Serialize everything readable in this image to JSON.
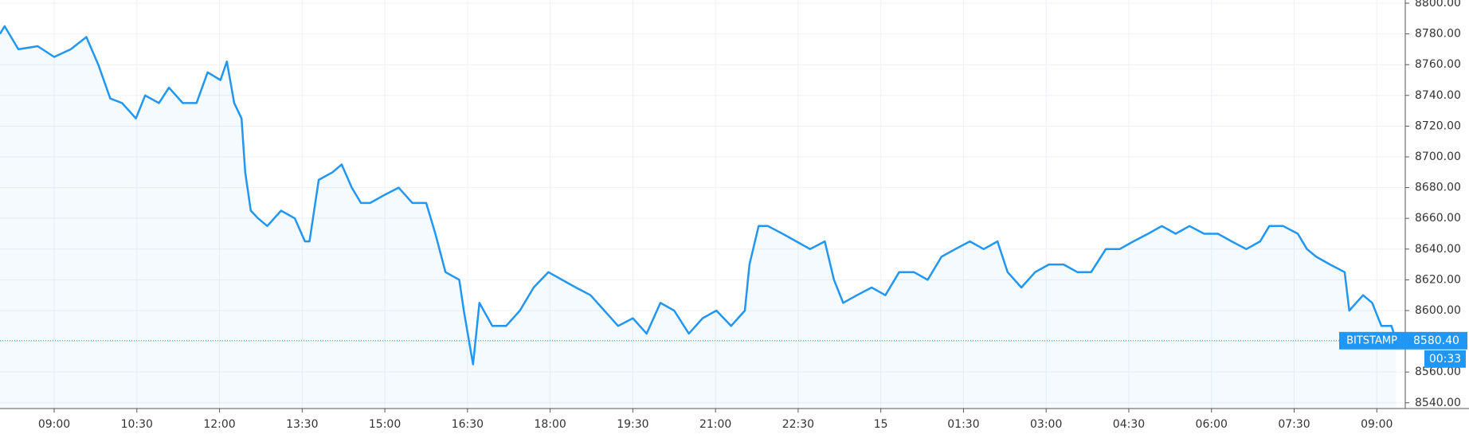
{
  "chart_data": {
    "type": "line",
    "x": [
      481,
      486,
      501,
      522,
      540,
      558,
      575,
      588,
      601,
      614,
      629,
      639,
      654,
      665,
      680,
      695,
      707,
      721,
      728,
      736,
      744,
      748,
      754,
      762,
      772,
      787,
      802,
      813,
      818,
      828,
      843,
      853,
      864,
      874,
      884,
      899,
      915,
      930,
      945,
      955,
      966,
      981,
      986,
      996,
      1003,
      1017,
      1032,
      1047,
      1062,
      1078,
      1093,
      1108,
      1124,
      1139,
      1154,
      1170,
      1185,
      1200,
      1215,
      1231,
      1246,
      1261,
      1277,
      1292,
      1297,
      1307,
      1317,
      1333,
      1348,
      1363,
      1379,
      1389,
      1399,
      1414,
      1430,
      1445,
      1460,
      1476,
      1491,
      1506,
      1521,
      1537,
      1552,
      1567,
      1578,
      1593,
      1608,
      1623,
      1639,
      1654,
      1669,
      1685,
      1700,
      1715,
      1731,
      1746,
      1761,
      1776,
      1792,
      1807,
      1822,
      1838,
      1853,
      1863,
      1878,
      1894,
      1904,
      1914,
      1929,
      1945,
      1950,
      1965,
      1975,
      1985,
      1996,
      2001
    ],
    "series": [
      {
        "color": "#2196f3",
        "values": [
          8780,
          8785,
          8770,
          8772,
          8765,
          8770,
          8778,
          8760,
          8738,
          8735,
          8725,
          8740,
          8735,
          8745,
          8735,
          8735,
          8755,
          8750,
          8762,
          8735,
          8725,
          8690,
          8665,
          8660,
          8655,
          8665,
          8660,
          8645,
          8645,
          8685,
          8690,
          8695,
          8680,
          8670,
          8670,
          8675,
          8680,
          8670,
          8670,
          8650,
          8625,
          8620,
          8600,
          8565,
          8605,
          8590,
          8590,
          8600,
          8615,
          8625,
          8620,
          8615,
          8610,
          8600,
          8590,
          8595,
          8585,
          8605,
          8600,
          8585,
          8595,
          8600,
          8590,
          8600,
          8630,
          8655,
          8655,
          8650,
          8645,
          8640,
          8645,
          8620,
          8605,
          8610,
          8615,
          8610,
          8625,
          8625,
          8620,
          8635,
          8640,
          8645,
          8640,
          8645,
          8625,
          8615,
          8625,
          8630,
          8630,
          8625,
          8625,
          8640,
          8640,
          8645,
          8650,
          8655,
          8650,
          8655,
          8650,
          8650,
          8645,
          8640,
          8645,
          8655,
          8655,
          8650,
          8640,
          8635,
          8630,
          8625,
          8600,
          8610,
          8605,
          8590,
          8590,
          8580.4
        ]
      }
    ],
    "xlim": [
      481,
      2011
    ],
    "xticks": [
      {
        "value": 540,
        "label": "09:00"
      },
      {
        "value": 630,
        "label": "10:30"
      },
      {
        "value": 720,
        "label": "12:00"
      },
      {
        "value": 810,
        "label": "13:30"
      },
      {
        "value": 900,
        "label": "15:00"
      },
      {
        "value": 990,
        "label": "16:30"
      },
      {
        "value": 1080,
        "label": "18:00"
      },
      {
        "value": 1170,
        "label": "19:30"
      },
      {
        "value": 1260,
        "label": "21:00"
      },
      {
        "value": 1350,
        "label": "22:30"
      },
      {
        "value": 1440,
        "label": "15"
      },
      {
        "value": 1530,
        "label": "01:30"
      },
      {
        "value": 1620,
        "label": "03:00"
      },
      {
        "value": 1710,
        "label": "04:30"
      },
      {
        "value": 1800,
        "label": "06:00"
      },
      {
        "value": 1890,
        "label": "07:30"
      },
      {
        "value": 1980,
        "label": "09:00"
      }
    ],
    "ylim": [
      8536.25,
      8800
    ],
    "yticks": [
      {
        "value": 8540,
        "label": "8540.00"
      },
      {
        "value": 8560,
        "label": "8560.00"
      },
      {
        "value": 8580,
        "label": "8580.00"
      },
      {
        "value": 8600,
        "label": "8600.00"
      },
      {
        "value": 8620,
        "label": "8620.00"
      },
      {
        "value": 8640,
        "label": "8640.00"
      },
      {
        "value": 8660,
        "label": "8660.00"
      },
      {
        "value": 8680,
        "label": "8680.00"
      },
      {
        "value": 8700,
        "label": "8700.00"
      },
      {
        "value": 8720,
        "label": "8720.00"
      },
      {
        "value": 8740,
        "label": "8740.00"
      },
      {
        "value": 8760,
        "label": "8760.00"
      },
      {
        "value": 8780,
        "label": "8780.00"
      },
      {
        "value": 8800,
        "label": "8800.00"
      }
    ],
    "grid": true,
    "price_line": {
      "source": "BITSTAMP",
      "value": 8580.4,
      "label": "8580.40",
      "countdown": "00:33"
    }
  }
}
